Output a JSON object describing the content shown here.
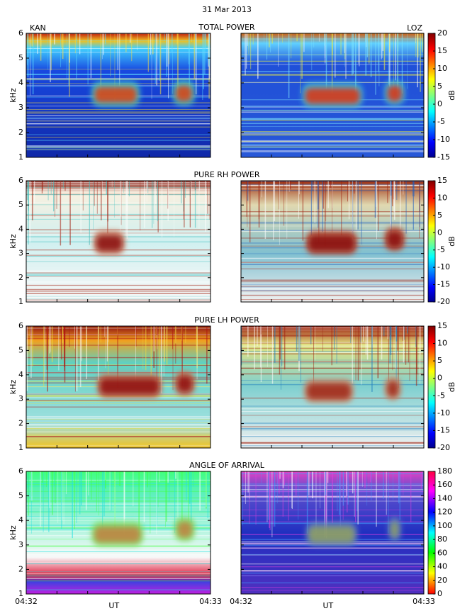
{
  "title": "31 Mar 2013",
  "stations": [
    "KAN",
    "LOZ"
  ],
  "chart_data": [
    {
      "type": "heatmap",
      "title": "TOTAL POWER",
      "ylabel": "kHz",
      "ylim": [
        1,
        6
      ],
      "yticks": [
        1,
        2,
        3,
        4,
        5,
        6
      ],
      "colorbar": {
        "label": "dB",
        "lim": [
          -15,
          20
        ],
        "ticks": [
          -15,
          -10,
          -5,
          0,
          5,
          10,
          15,
          20
        ]
      }
    },
    {
      "type": "heatmap",
      "title": "PURE RH POWER",
      "ylabel": "kHz",
      "ylim": [
        1,
        6
      ],
      "yticks": [
        1,
        2,
        3,
        4,
        5,
        6
      ],
      "colorbar": {
        "label": "dB",
        "lim": [
          -20,
          15
        ],
        "ticks": [
          -20,
          -15,
          -10,
          -5,
          0,
          5,
          10,
          15
        ]
      }
    },
    {
      "type": "heatmap",
      "title": "PURE LH POWER",
      "ylabel": "kHz",
      "ylim": [
        1,
        6
      ],
      "yticks": [
        1,
        2,
        3,
        4,
        5,
        6
      ],
      "colorbar": {
        "label": "dB",
        "lim": [
          -20,
          15
        ],
        "ticks": [
          -20,
          -15,
          -10,
          -5,
          0,
          5,
          10,
          15
        ]
      }
    },
    {
      "type": "heatmap",
      "title": "ANGLE OF ARRIVAL",
      "ylabel": "kHz",
      "ylim": [
        1,
        6
      ],
      "yticks": [
        1,
        2,
        3,
        4,
        5,
        6
      ],
      "xticks": [
        "04:32",
        "04:33"
      ],
      "xlabel": "UT",
      "colorbar": {
        "lim": [
          0,
          180
        ],
        "ticks": [
          0,
          20,
          40,
          60,
          80,
          100,
          120,
          140,
          160,
          180
        ]
      }
    }
  ]
}
